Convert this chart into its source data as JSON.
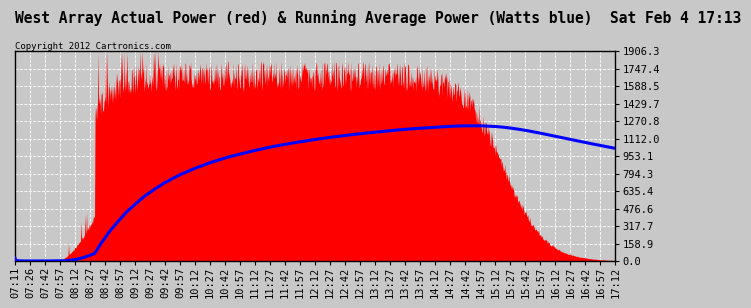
{
  "title": "West Array Actual Power (red) & Running Average Power (Watts blue)  Sat Feb 4 17:13",
  "copyright": "Copyright 2012 Cartronics.com",
  "background_color": "#c8c8c8",
  "plot_bg_color": "#c8c8c8",
  "ymin": 0.0,
  "ymax": 1906.3,
  "yticks": [
    0.0,
    158.9,
    317.7,
    476.6,
    635.4,
    794.3,
    953.1,
    1112.0,
    1270.8,
    1429.7,
    1588.5,
    1747.4,
    1906.3
  ],
  "time_labels": [
    "07:11",
    "07:26",
    "07:42",
    "07:57",
    "08:12",
    "08:27",
    "08:42",
    "08:57",
    "09:12",
    "09:27",
    "09:42",
    "09:57",
    "10:12",
    "10:27",
    "10:42",
    "10:57",
    "11:12",
    "11:27",
    "11:42",
    "11:57",
    "12:12",
    "12:27",
    "12:42",
    "12:57",
    "13:12",
    "13:27",
    "13:42",
    "13:57",
    "14:12",
    "14:27",
    "14:42",
    "14:57",
    "15:12",
    "15:27",
    "15:42",
    "15:57",
    "16:12",
    "16:27",
    "16:42",
    "16:57",
    "17:12"
  ],
  "red_color": "#ff0000",
  "blue_color": "#0000ff",
  "grid_color": "#ffffff",
  "title_fontsize": 10.5,
  "copyright_fontsize": 6.5,
  "tick_fontsize": 7.5
}
